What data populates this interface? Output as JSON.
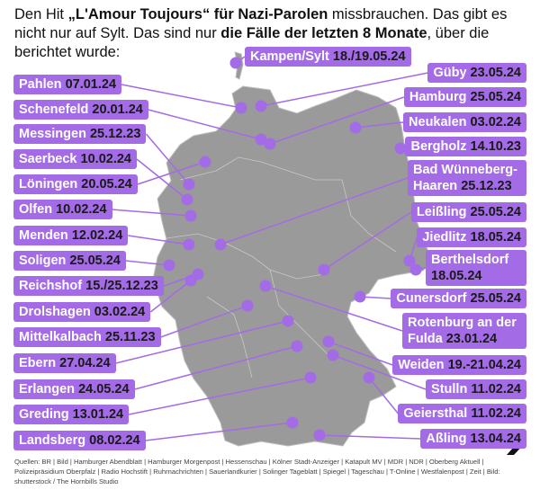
{
  "header": {
    "segments": [
      {
        "text": "Den Hit ",
        "bold": false
      },
      {
        "text": "„L'Amour Toujours“ für Nazi-Parolen",
        "bold": true
      },
      {
        "text": " missbrauchen. Das gibt es nicht nur auf Sylt. Das sind nur ",
        "bold": false
      },
      {
        "text": "die Fälle der letzten 8 Monate",
        "bold": true
      },
      {
        "text": ", über die berichtet wurde:",
        "bold": false
      }
    ]
  },
  "labels": [
    {
      "place": "Kampen/Sylt",
      "date": "18./19.05.24"
    },
    {
      "place": "Güby",
      "date": "23.05.24"
    },
    {
      "place": "Hamburg",
      "date": "25.05.24"
    },
    {
      "place": "Neukalen",
      "date": "03.02.24"
    },
    {
      "place": "Bergholz",
      "date": "14.10.23"
    },
    {
      "place": "Bad Wünneberg-Haaren",
      "date": "25.12.23"
    },
    {
      "place": "Leißling",
      "date": "25.05.24"
    },
    {
      "place": "Jiedlitz",
      "date": "18.05.24"
    },
    {
      "place": "Berthelsdorf",
      "date": "18.05.24"
    },
    {
      "place": "Cunersdorf",
      "date": "25.05.24"
    },
    {
      "place": "Rotenburg an der Fulda",
      "date": "23.01.24"
    },
    {
      "place": "Weiden",
      "date": "19.-21.04.24"
    },
    {
      "place": "Stulln",
      "date": "11.02.24"
    },
    {
      "place": "Geiersthal",
      "date": "11.02.24"
    },
    {
      "place": "Aßling",
      "date": "13.04.24"
    },
    {
      "place": "Pahlen",
      "date": "07.01.24"
    },
    {
      "place": "Schenefeld",
      "date": "20.01.24"
    },
    {
      "place": "Messingen",
      "date": "25.12.23"
    },
    {
      "place": "Saerbeck",
      "date": "10.02.24"
    },
    {
      "place": "Löningen",
      "date": "20.05.24"
    },
    {
      "place": "Olfen",
      "date": "10.02.24"
    },
    {
      "place": "Menden",
      "date": "12.02.24"
    },
    {
      "place": "Soligen",
      "date": "25.05.24"
    },
    {
      "place": "Reichshof",
      "date": "15./25.12.23"
    },
    {
      "place": "Drolshagen",
      "date": "03.02.24"
    },
    {
      "place": "Mittelkalbach",
      "date": "25.11.23"
    },
    {
      "place": "Ebern",
      "date": "27.04.24"
    },
    {
      "place": "Erlangen",
      "date": "24.05.24"
    },
    {
      "place": "Greding",
      "date": "13.01.24"
    },
    {
      "place": "Landsberg",
      "date": "08.02.24"
    }
  ],
  "sources": "Quellen: BR | Bild | Hamburger Abendblatt | Hamburger Morgenpost | Hessenschau | Kölner Stadt-Anzeiger | Katapult MV | MDR | NDR | Oberberg Aktuell | Polizeipräsidium Oberpfalz | Radio Hochstift | Ruhrnachrichten | Sauerlandkurier | Solinger Tageblatt | Spiegel | Tageschau | T-Online | Westfalenpost | Zeit | Bild: shutterstock / The Hornbills Studio"
}
